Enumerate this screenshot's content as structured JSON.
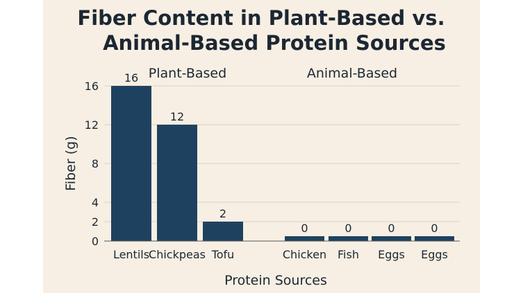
{
  "chart_data": {
    "type": "bar",
    "title_line1": "Fiber Content in Plant-Based vs.",
    "title_line2": "Animal-Based Protein Sources",
    "xlabel": "Protein Sources",
    "ylabel": "Fiber (g)",
    "ylim": [
      0,
      16
    ],
    "yticks": [
      0,
      2,
      4,
      8,
      12,
      16
    ],
    "grid": true,
    "groups": [
      {
        "label": "Plant-Based",
        "categories": [
          "Lentils",
          "Chickpeas",
          "Tofu"
        ],
        "values": [
          16,
          12,
          2
        ]
      },
      {
        "label": "Animal-Based",
        "categories": [
          "Chicken",
          "Fish",
          "Eggs",
          "Eggs"
        ],
        "values": [
          0,
          0,
          0,
          0
        ]
      }
    ],
    "bar_color": "#1f4160",
    "background_color": "#f7efe3"
  }
}
